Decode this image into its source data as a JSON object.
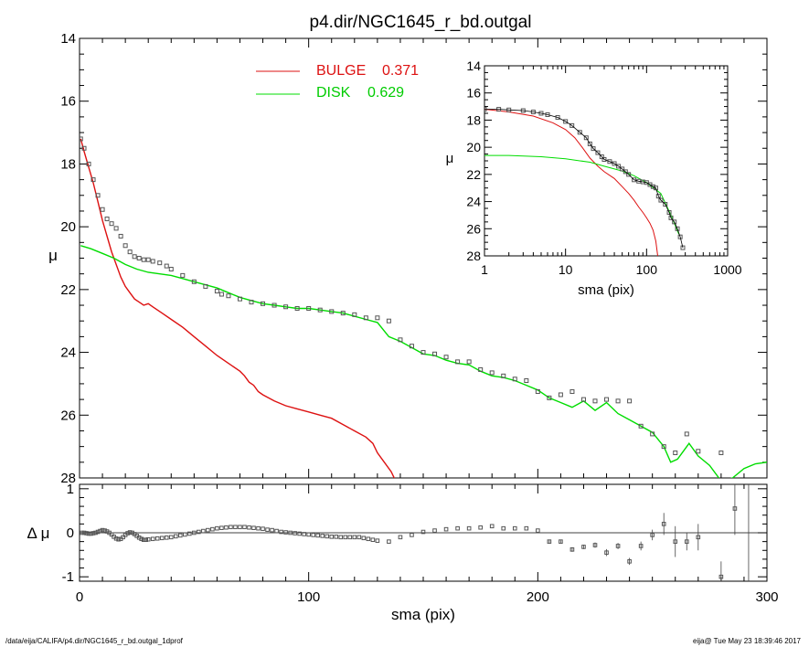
{
  "title": "p4.dir/NGC1645_r_bd.outgal",
  "footer": {
    "path": "/data/eija/CALIFA/p4.dir/NGC1645_r_bd.outgal_1dprof",
    "stamp": "eija@  Tue May 23 18:39:46 2017"
  },
  "colors": {
    "bulge": "#dd1111",
    "disk": "#00dd00",
    "data": "#555555",
    "axis": "#000000"
  },
  "chart_data": [
    {
      "id": "main",
      "type": "line",
      "xlabel": "",
      "ylabel": "μ",
      "xlim": [
        0,
        300
      ],
      "ylim": [
        28,
        14
      ],
      "yticks": [
        "14",
        "16",
        "18",
        "20",
        "22",
        "24",
        "26",
        "28"
      ],
      "legend": {
        "placement": "top-center",
        "entries": [
          {
            "label": "BULGE",
            "value": "0.371",
            "color": "#dd1111"
          },
          {
            "label": "DISK",
            "value": "0.629",
            "color": "#00dd00"
          }
        ]
      },
      "series": [
        {
          "name": "BULGE",
          "color": "#dd1111",
          "x": [
            0.5,
            2,
            4,
            6,
            8,
            10,
            12,
            14,
            16,
            18,
            20,
            22,
            24,
            26,
            28,
            30,
            32,
            34,
            36,
            40,
            45,
            50,
            55,
            60,
            65,
            70,
            72,
            74,
            76,
            78,
            80,
            85,
            90,
            95,
            100,
            105,
            110,
            115,
            120,
            125,
            128,
            130,
            133,
            136,
            138
          ],
          "y": [
            17.2,
            17.6,
            18.1,
            18.6,
            19.2,
            19.8,
            20.3,
            20.8,
            21.2,
            21.6,
            21.9,
            22.1,
            22.3,
            22.4,
            22.5,
            22.45,
            22.55,
            22.65,
            22.75,
            22.95,
            23.2,
            23.5,
            23.8,
            24.1,
            24.35,
            24.6,
            24.75,
            24.95,
            25.05,
            25.25,
            25.35,
            25.55,
            25.7,
            25.8,
            25.9,
            26.0,
            26.1,
            26.3,
            26.5,
            26.7,
            26.9,
            27.2,
            27.5,
            27.8,
            28.1
          ]
        },
        {
          "name": "DISK",
          "color": "#00dd00",
          "x": [
            0.5,
            5,
            10,
            15,
            20,
            25,
            30,
            35,
            40,
            45,
            50,
            55,
            60,
            65,
            70,
            75,
            80,
            85,
            90,
            95,
            100,
            105,
            110,
            115,
            120,
            125,
            130,
            135,
            140,
            145,
            150,
            155,
            160,
            165,
            170,
            175,
            180,
            185,
            190,
            195,
            200,
            205,
            210,
            215,
            220,
            225,
            230,
            235,
            240,
            245,
            250,
            255,
            258,
            261,
            264,
            266,
            270,
            275,
            280,
            285,
            290,
            295,
            300
          ],
          "y": [
            20.6,
            20.7,
            20.85,
            21.0,
            21.2,
            21.35,
            21.45,
            21.5,
            21.55,
            21.65,
            21.75,
            21.85,
            21.95,
            22.1,
            22.25,
            22.35,
            22.45,
            22.5,
            22.55,
            22.6,
            22.6,
            22.65,
            22.7,
            22.75,
            22.85,
            22.95,
            23.05,
            23.5,
            23.65,
            23.85,
            24.05,
            24.1,
            24.25,
            24.35,
            24.4,
            24.6,
            24.75,
            24.8,
            24.9,
            25.05,
            25.2,
            25.45,
            25.6,
            25.75,
            25.55,
            25.85,
            25.6,
            25.95,
            26.15,
            26.35,
            26.55,
            27.0,
            27.5,
            27.4,
            27.1,
            26.9,
            27.3,
            27.6,
            28.1,
            28.0,
            27.7,
            27.55,
            27.5
          ]
        },
        {
          "name": "",
          "color": "#555555",
          "x": [
            0.5,
            2,
            4,
            6,
            8,
            10,
            12,
            14,
            16,
            18,
            20,
            22,
            24,
            26,
            28,
            30,
            32,
            35,
            38,
            40,
            45,
            50,
            55,
            60,
            62,
            65,
            70,
            75,
            80,
            85,
            90,
            95,
            100,
            105,
            110,
            115,
            120,
            125,
            130,
            135,
            140,
            145,
            150,
            155,
            160,
            165,
            170,
            175,
            180,
            185,
            190,
            195,
            200,
            205,
            210,
            215,
            220,
            225,
            230,
            235,
            240,
            245,
            250,
            255,
            260,
            265,
            270,
            280
          ],
          "y": [
            17.2,
            17.5,
            18.0,
            18.5,
            19.0,
            19.45,
            19.75,
            19.9,
            20.05,
            20.3,
            20.6,
            20.8,
            20.95,
            21.0,
            21.05,
            21.05,
            21.1,
            21.15,
            21.25,
            21.35,
            21.55,
            21.75,
            21.9,
            22.05,
            22.15,
            22.2,
            22.3,
            22.4,
            22.45,
            22.5,
            22.55,
            22.6,
            22.6,
            22.65,
            22.7,
            22.75,
            22.8,
            22.9,
            22.9,
            23.0,
            23.6,
            23.8,
            24.0,
            24.05,
            24.15,
            24.3,
            24.3,
            24.55,
            24.65,
            24.75,
            24.85,
            24.9,
            25.25,
            25.45,
            25.35,
            25.25,
            25.5,
            25.55,
            25.5,
            25.55,
            25.55,
            26.35,
            26.6,
            27.0,
            27.2,
            26.6,
            27.15,
            27.2
          ]
        }
      ]
    },
    {
      "id": "inset",
      "type": "line",
      "xlabel": "sma (pix)",
      "ylabel": "μ",
      "xscale": "log",
      "xlim": [
        1,
        1000
      ],
      "ylim": [
        28,
        14
      ],
      "xticks": [
        "1",
        "10",
        "100",
        "1000"
      ],
      "yticks": [
        "14",
        "16",
        "18",
        "20",
        "22",
        "24",
        "26",
        "28"
      ],
      "series": [
        {
          "name": "BULGE",
          "color": "#dd1111",
          "x": [
            1,
            2,
            4,
            7,
            10,
            13,
            16,
            20,
            25,
            30,
            40,
            50,
            60,
            70,
            80,
            90,
            100,
            110,
            120,
            130,
            138
          ],
          "y": [
            17.2,
            17.4,
            17.7,
            18.2,
            18.7,
            19.3,
            20.0,
            20.8,
            21.4,
            21.8,
            22.3,
            22.9,
            23.4,
            23.9,
            24.4,
            24.8,
            25.2,
            25.6,
            26.1,
            26.9,
            28.1
          ]
        },
        {
          "name": "DISK",
          "color": "#00dd00",
          "x": [
            1,
            2,
            5,
            10,
            20,
            30,
            50,
            70,
            100,
            150,
            200,
            250
          ],
          "y": [
            20.6,
            20.6,
            20.7,
            20.85,
            21.1,
            21.4,
            21.75,
            22.1,
            22.6,
            23.4,
            25.0,
            26.4
          ]
        },
        {
          "name": "",
          "color": "#555555",
          "x": [
            1,
            1.5,
            2,
            3,
            4,
            5,
            6,
            8,
            10,
            12,
            15,
            18,
            20,
            22,
            25,
            28,
            30,
            35,
            40,
            45,
            50,
            55,
            60,
            70,
            80,
            90,
            100,
            110,
            120,
            130,
            140,
            150,
            170,
            190,
            200,
            220,
            240,
            260,
            280
          ],
          "y": [
            17.2,
            17.2,
            17.25,
            17.3,
            17.4,
            17.5,
            17.6,
            17.8,
            18.1,
            18.4,
            18.9,
            19.3,
            19.75,
            20.1,
            20.4,
            20.7,
            20.9,
            21.05,
            21.2,
            21.4,
            21.6,
            21.8,
            22.0,
            22.4,
            22.5,
            22.55,
            22.6,
            22.75,
            22.9,
            23.0,
            23.6,
            23.9,
            24.2,
            24.8,
            25.2,
            25.5,
            26.0,
            26.6,
            27.4
          ]
        }
      ]
    },
    {
      "id": "residual",
      "type": "scatter",
      "xlabel": "sma (pix)",
      "ylabel": "Δ μ",
      "xlim": [
        0,
        300
      ],
      "ylim": [
        -1.1,
        1.1
      ],
      "xticks": [
        "0",
        "100",
        "200",
        "300"
      ],
      "yticks": [
        "1",
        "0",
        "-1"
      ],
      "points": {
        "x": [
          1,
          2,
          3,
          4,
          5,
          6,
          7,
          8,
          9,
          10,
          11,
          12,
          13,
          14,
          15,
          16,
          17,
          18,
          19,
          20,
          21,
          22,
          23,
          24,
          25,
          26,
          27,
          28,
          29,
          30,
          32,
          34,
          36,
          38,
          40,
          42,
          44,
          46,
          48,
          50,
          52,
          54,
          56,
          58,
          60,
          62,
          64,
          66,
          68,
          70,
          72,
          74,
          76,
          78,
          80,
          82,
          84,
          86,
          88,
          90,
          92,
          94,
          96,
          98,
          100,
          102,
          104,
          106,
          108,
          110,
          112,
          114,
          116,
          118,
          120,
          122,
          124,
          126,
          128,
          130,
          135,
          140,
          145,
          150,
          155,
          160,
          165,
          170,
          175,
          180,
          185,
          190,
          195,
          200
        ],
        "y": [
          0.0,
          0.0,
          -0.01,
          -0.02,
          -0.02,
          -0.01,
          0.0,
          0.02,
          0.04,
          0.06,
          0.05,
          0.03,
          0.0,
          -0.04,
          -0.09,
          -0.13,
          -0.15,
          -0.14,
          -0.1,
          -0.05,
          -0.01,
          0.01,
          0.0,
          -0.03,
          -0.07,
          -0.11,
          -0.14,
          -0.16,
          -0.16,
          -0.15,
          -0.14,
          -0.13,
          -0.12,
          -0.11,
          -0.1,
          -0.08,
          -0.06,
          -0.04,
          -0.02,
          0.0,
          0.02,
          0.04,
          0.06,
          0.08,
          0.1,
          0.11,
          0.12,
          0.13,
          0.13,
          0.13,
          0.13,
          0.12,
          0.11,
          0.1,
          0.09,
          0.07,
          0.06,
          0.04,
          0.02,
          0.01,
          0.0,
          -0.01,
          -0.02,
          -0.03,
          -0.04,
          -0.05,
          -0.06,
          -0.07,
          -0.08,
          -0.09,
          -0.09,
          -0.1,
          -0.1,
          -0.1,
          -0.1,
          -0.1,
          -0.12,
          -0.14,
          -0.16,
          -0.18,
          -0.2,
          -0.1,
          -0.05,
          0.02,
          0.05,
          0.08,
          0.1,
          0.1,
          0.12,
          0.15,
          0.1,
          0.1,
          0.1,
          0.05
        ]
      },
      "errorpoints": {
        "x": [
          205,
          210,
          215,
          220,
          225,
          230,
          235,
          240,
          245,
          250,
          255,
          260,
          265,
          270,
          280,
          286,
          292
        ],
        "y": [
          -0.2,
          -0.2,
          -0.38,
          -0.32,
          -0.28,
          -0.45,
          -0.3,
          -0.65,
          -0.3,
          -0.05,
          0.2,
          -0.2,
          -0.2,
          -0.1,
          -1.0,
          0.55,
          null
        ],
        "err": [
          0.03,
          0.03,
          0.05,
          0.05,
          0.06,
          0.08,
          0.07,
          0.08,
          0.1,
          0.12,
          0.25,
          0.35,
          0.2,
          0.3,
          0.35,
          0.6,
          1.1
        ]
      }
    }
  ]
}
